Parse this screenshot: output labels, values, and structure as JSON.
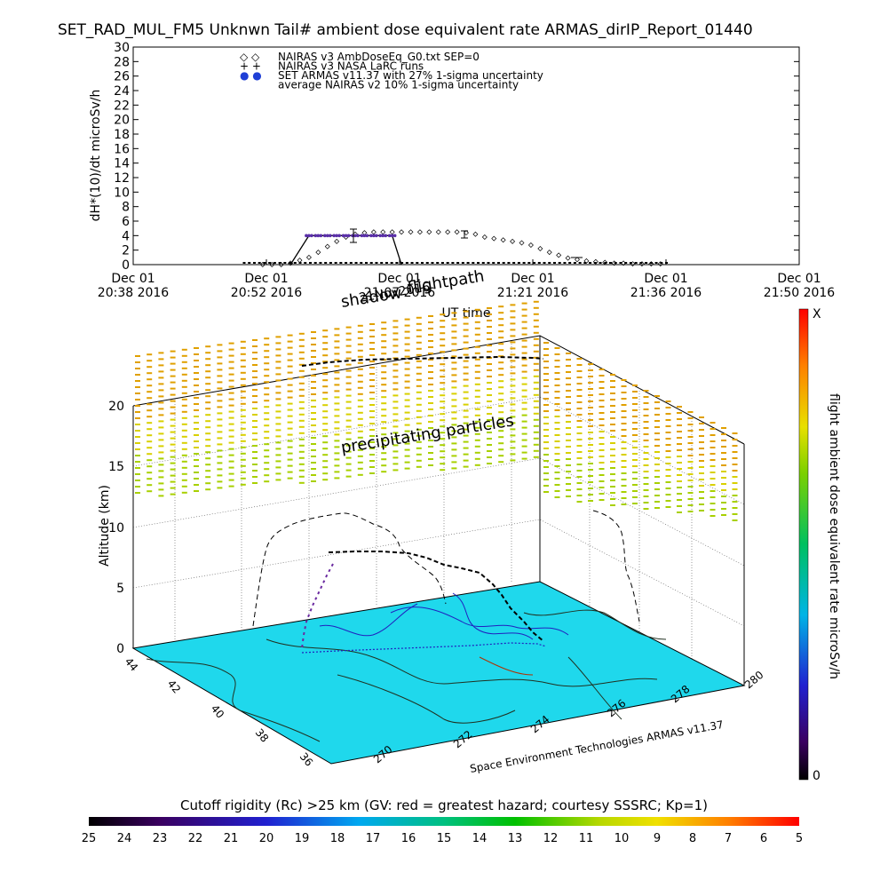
{
  "title": "SET_RAD_MUL_FM5 Unknwn Tail#  ambient dose equivalent rate ARMAS_dirIP_Report_01440",
  "chart_data": [
    {
      "type": "scatter",
      "ylabel": "dH*(10)/dt microSv/h",
      "xlabel": "UT time",
      "ylim": [
        0,
        30
      ],
      "yticks": [
        "0",
        "2",
        "4",
        "6",
        "8",
        "10",
        "12",
        "14",
        "16",
        "18",
        "20",
        "22",
        "24",
        "26",
        "28",
        "30"
      ],
      "xticks": [
        {
          "date": "Dec 01",
          "time": "20:38 2016"
        },
        {
          "date": "Dec 01",
          "time": "20:52 2016"
        },
        {
          "date": "Dec 01",
          "time": "21:07 2016"
        },
        {
          "date": "Dec 01",
          "time": "21:21 2016"
        },
        {
          "date": "Dec 01",
          "time": "21:36 2016"
        },
        {
          "date": "Dec 01",
          "time": "21:50 2016"
        }
      ],
      "legend": [
        {
          "symbol": "◇ ◇",
          "label": "NAIRAS v3 AmbDoseEq_G0.txt SEP=0"
        },
        {
          "symbol": "+ +",
          "label": "NAIRAS v3 NASA LaRC runs"
        },
        {
          "symbol": "● ●",
          "label": "SET ARMAS v11.37 with 27% 1-sigma uncertainty",
          "color": "#1f3fd6"
        },
        {
          "symbol": "",
          "label": "average NAIRAS v2 10% 1-sigma uncertainty"
        }
      ],
      "series": [
        {
          "name": "NAIRAS v3 AmbDoseEq_G0.txt SEP=0",
          "x": [
            "20:52",
            "20:53",
            "20:54",
            "20:55",
            "20:56",
            "20:57",
            "20:58",
            "20:59",
            "21:00",
            "21:01",
            "21:02",
            "21:03",
            "21:04",
            "21:05",
            "21:06",
            "21:07",
            "21:08",
            "21:09",
            "21:10",
            "21:11",
            "21:12",
            "21:13",
            "21:14",
            "21:15",
            "21:16",
            "21:17",
            "21:18",
            "21:19",
            "21:20",
            "21:21",
            "21:22",
            "21:23",
            "21:24",
            "21:25",
            "21:26",
            "21:27",
            "21:28",
            "21:29",
            "21:30",
            "21:31",
            "21:32",
            "21:33",
            "21:34",
            "21:35"
          ],
          "y": [
            0,
            0,
            0,
            0.2,
            0.6,
            1.0,
            1.7,
            2.5,
            3.2,
            3.8,
            4.2,
            4.4,
            4.5,
            4.5,
            4.5,
            4.5,
            4.5,
            4.5,
            4.5,
            4.5,
            4.5,
            4.5,
            4.4,
            4.2,
            3.8,
            3.6,
            3.4,
            3.2,
            3.0,
            2.7,
            2.2,
            1.7,
            1.3,
            0.9,
            0.7,
            0.5,
            0.4,
            0.3,
            0.2,
            0.2,
            0.1,
            0.1,
            0.1,
            0.1
          ]
        },
        {
          "name": "SET ARMAS v11.37",
          "x": [
            "20:57",
            "20:58",
            "20:59",
            "21:00",
            "21:01",
            "21:02",
            "21:03",
            "21:04",
            "21:05",
            "21:06"
          ],
          "y": [
            4.0,
            4.0,
            4.0,
            4.0,
            4.0,
            4.0,
            4.0,
            4.0,
            4.0,
            4.0
          ]
        }
      ]
    },
    {
      "type": "scatter",
      "zlabel": "Altitude (km)",
      "zticks": [
        "0",
        "5",
        "10",
        "15",
        "20"
      ],
      "lat_ticks": [
        "44",
        "42",
        "40",
        "38",
        "36"
      ],
      "lon_ticks": [
        "270",
        "272",
        "274",
        "276",
        "278",
        "280"
      ],
      "annotations": [
        "shadow",
        "flightpath",
        "21Nov2016",
        "precipitating particles",
        "Space Environment Technologies ARMAS v11.37"
      ],
      "ground_color": "#1fd8ec"
    }
  ],
  "right_colorbar": {
    "label": "flight ambient dose equivalent rate microSv/h",
    "top_label": "X",
    "bottom_label": "0"
  },
  "bottom_colorbar": {
    "label": "Cutoff rigidity (Rc) >25 km (GV: red = greatest hazard; courtesy SSSRC; Kp=1)",
    "ticks": [
      "25",
      "24",
      "23",
      "22",
      "21",
      "20",
      "19",
      "18",
      "17",
      "16",
      "15",
      "14",
      "13",
      "12",
      "11",
      "10",
      "9",
      "8",
      "7",
      "6",
      "5"
    ]
  }
}
